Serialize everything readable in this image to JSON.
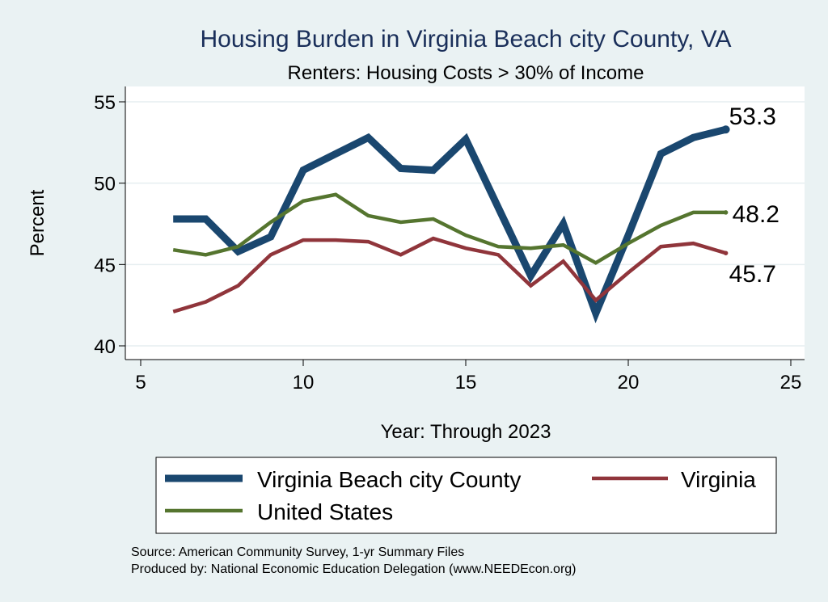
{
  "chart_data": {
    "type": "line",
    "title": "Housing Burden in Virginia Beach city County, VA",
    "subtitle": "Renters: Housing Costs > 30% of Income",
    "xlabel": "Year: Through 2023",
    "ylabel": "Percent",
    "xlim": [
      5,
      25
    ],
    "ylim": [
      40,
      55
    ],
    "x_ticks": [
      5,
      10,
      15,
      20,
      25
    ],
    "y_ticks": [
      40,
      45,
      50,
      55
    ],
    "grid": true,
    "legend_position": "bottom",
    "series": [
      {
        "name": "Virginia Beach city County",
        "color": "#1a476f",
        "end_label": "53.3",
        "x": [
          6,
          7,
          8,
          9,
          10,
          11,
          12,
          13,
          14,
          15,
          16,
          17,
          18,
          19,
          20,
          21,
          22,
          23
        ],
        "values": [
          47.8,
          47.8,
          45.8,
          46.7,
          50.8,
          51.8,
          52.8,
          50.9,
          50.8,
          52.7,
          48.5,
          44.3,
          47.5,
          42.0,
          46.8,
          51.8,
          52.8,
          53.3
        ]
      },
      {
        "name": "Virginia",
        "color": "#90353b",
        "end_label": "45.7",
        "x": [
          6,
          7,
          8,
          9,
          10,
          11,
          12,
          13,
          14,
          15,
          16,
          17,
          18,
          19,
          20,
          21,
          22,
          23
        ],
        "values": [
          42.1,
          42.7,
          43.7,
          45.6,
          46.5,
          46.5,
          46.4,
          45.6,
          46.6,
          46.0,
          45.6,
          43.7,
          45.2,
          42.8,
          44.5,
          46.1,
          46.3,
          45.7
        ]
      },
      {
        "name": "United States",
        "color": "#55752f",
        "end_label": "48.2",
        "x": [
          6,
          7,
          8,
          9,
          10,
          11,
          12,
          13,
          14,
          15,
          16,
          17,
          18,
          19,
          20,
          21,
          22,
          23
        ],
        "values": [
          45.9,
          45.6,
          46.1,
          47.6,
          48.9,
          49.3,
          48.0,
          47.6,
          47.8,
          46.8,
          46.1,
          46.0,
          46.2,
          45.1,
          46.3,
          47.4,
          48.2,
          48.2
        ]
      }
    ]
  },
  "footer": {
    "source": "Source: American Community Survey, 1-yr Summary Files",
    "produced_by": "Produced by: National Economic Education Delegation (www.NEEDEcon.org)"
  }
}
